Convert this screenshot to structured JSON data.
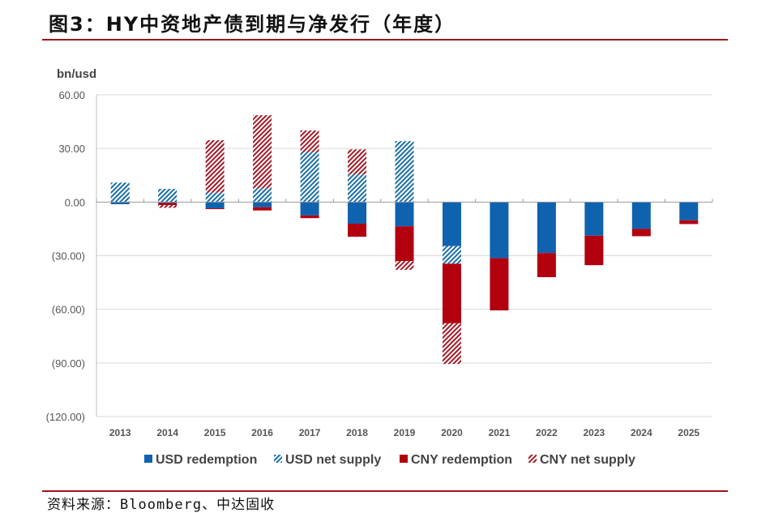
{
  "title": "图3：HY中资地产债到期与净发行（年度）",
  "source": "资料来源：Bloomberg、中达固收",
  "chart_data": {
    "type": "bar",
    "stacked": true,
    "title": "图3：HY中资地产债到期与净发行（年度）",
    "ylabel": "bn/usd",
    "xlabel": "",
    "ylim": [
      -120,
      60
    ],
    "yticks": [
      60,
      30,
      0,
      -30,
      -60,
      -90,
      -120
    ],
    "ytick_labels": [
      "60.00",
      "30.00",
      "0.00",
      "(30.00)",
      "(60.00)",
      "(90.00)",
      "(120.00)"
    ],
    "grid": true,
    "legend_position": "bottom",
    "categories": [
      "2013",
      "2014",
      "2015",
      "2016",
      "2017",
      "2018",
      "2019",
      "2020",
      "2021",
      "2022",
      "2023",
      "2024",
      "2025"
    ],
    "series": [
      {
        "name": "USD redemption",
        "color": "#0f62ae",
        "pattern": "solid",
        "values": [
          -1.2,
          -0.5,
          -3.5,
          -2.9,
          -7.5,
          -12.1,
          -13.6,
          -24.6,
          -31.4,
          -28.5,
          -18.8,
          -15.0,
          -10.2
        ]
      },
      {
        "name": "USD net supply",
        "color": "#1a6fa8",
        "pattern": "hatch",
        "values": [
          10.9,
          7.4,
          5.3,
          7.7,
          28.0,
          15.5,
          34.1,
          -9.9,
          0,
          0,
          0,
          0,
          0
        ]
      },
      {
        "name": "CNY redemption",
        "color": "#b3000f",
        "pattern": "solid",
        "values": [
          0,
          -1.2,
          -0.3,
          -1.8,
          -1.5,
          -7.3,
          -19.4,
          -33.3,
          -29.2,
          -13.5,
          -16.5,
          -4.1,
          -2.1
        ]
      },
      {
        "name": "CNY net supply",
        "color": "#a31a26",
        "pattern": "hatch",
        "values": [
          0,
          -1.5,
          29.3,
          40.9,
          12.1,
          14.0,
          -4.9,
          -22.8,
          0,
          0,
          0,
          0,
          0
        ]
      }
    ]
  }
}
